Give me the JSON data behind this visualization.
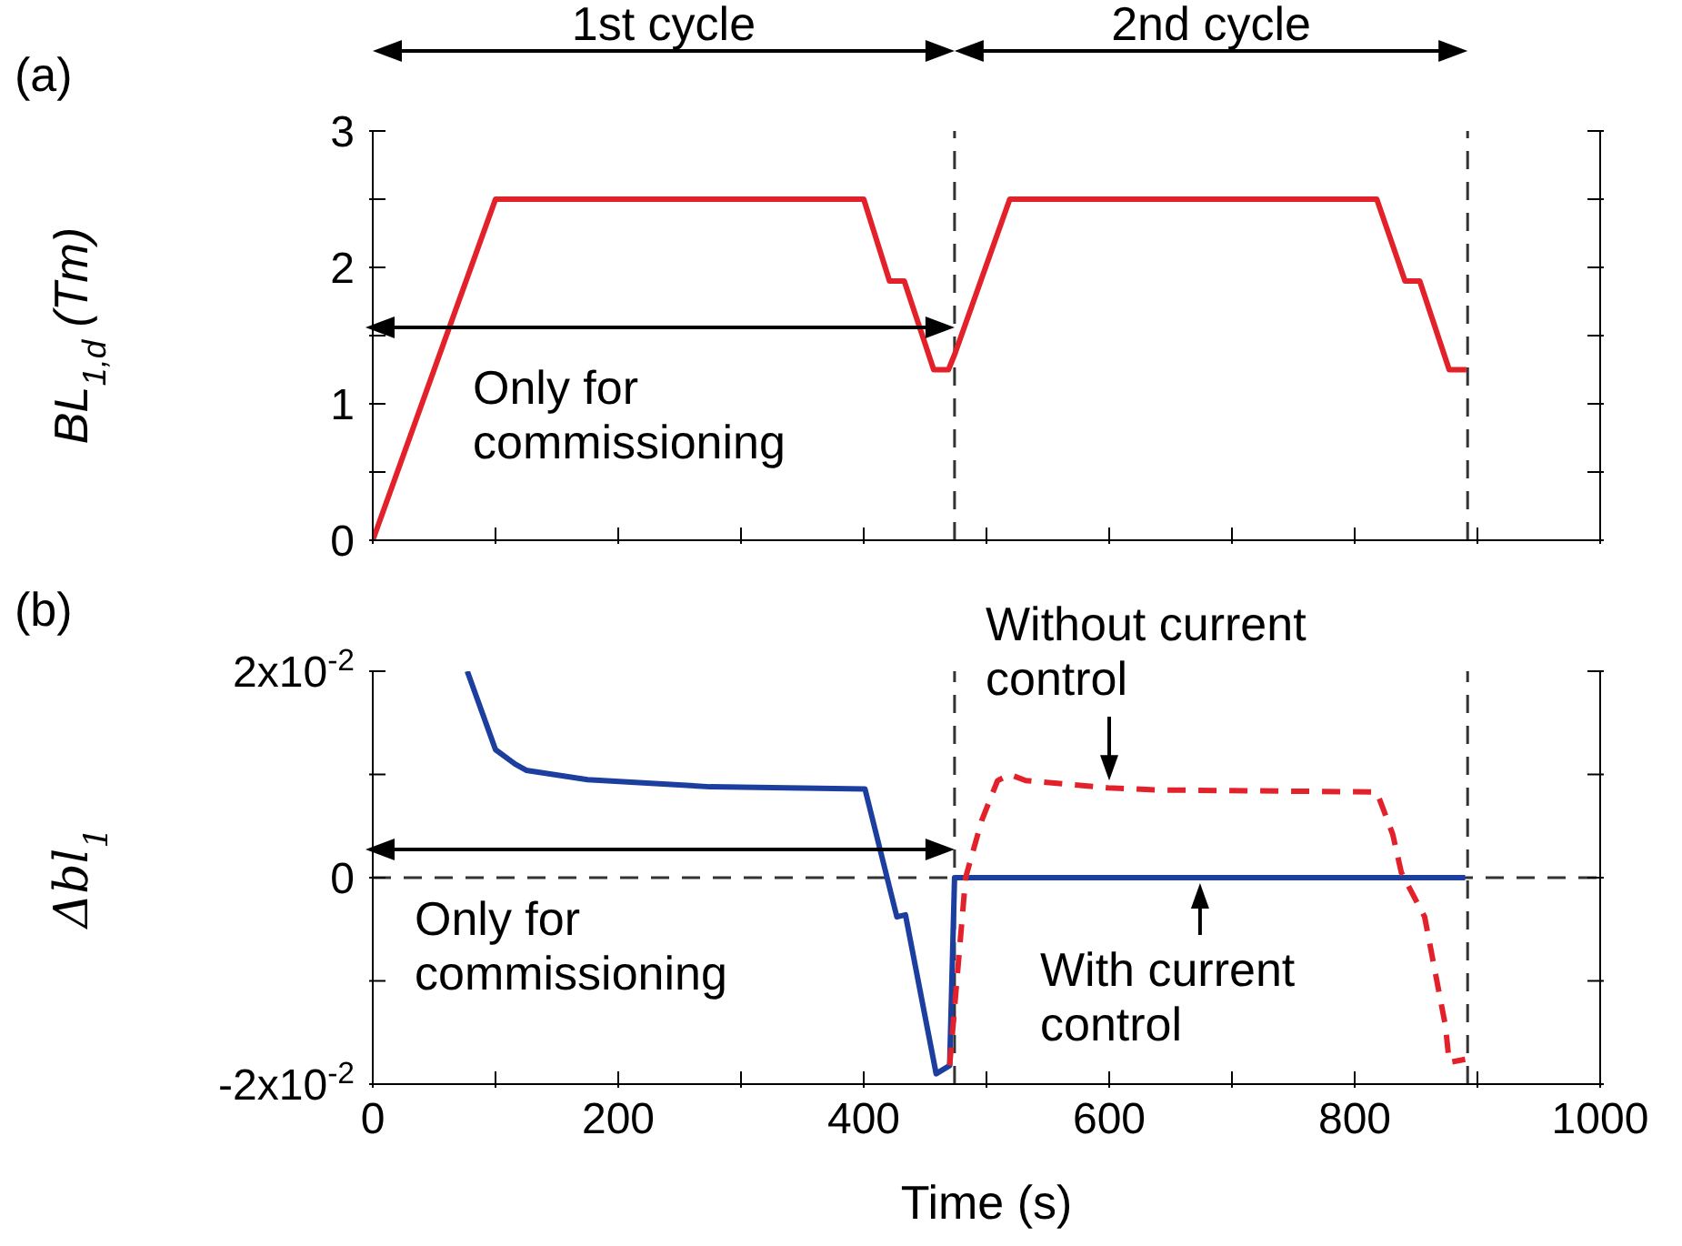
{
  "chart_data": [
    {
      "type": "line",
      "ylabel": "BL$_{1,d}$ (Tm)",
      "annotations": [
        "(a)",
        "1st cycle",
        "2nd cycle",
        "Only for commissioning"
      ],
      "series": [
        {
          "color": "#e3212b",
          "values": [
            0,
            2.5,
            2.5,
            1.9,
            1.9,
            1.25,
            1.25,
            1.36,
            2.5,
            2.5,
            1.9,
            1.9,
            1.25,
            1.25
          ],
          "x": [
            0,
            100,
            400,
            421,
            433,
            457,
            469,
            474,
            519,
            818,
            841,
            853,
            877,
            891
          ]
        }
      ],
      "xlim": [
        0,
        1000
      ],
      "xticks": [
        {
          "value": 0,
          "label": null
        },
        {
          "value": 100,
          "label": null
        },
        {
          "value": 200,
          "label": null
        },
        {
          "value": 300,
          "label": null
        },
        {
          "value": 400,
          "label": null
        },
        {
          "value": 500,
          "label": null
        },
        {
          "value": 600,
          "label": null
        },
        {
          "value": 700,
          "label": null
        },
        {
          "value": 800,
          "label": null
        },
        {
          "value": 900,
          "label": null
        },
        {
          "value": 1000,
          "label": null
        }
      ],
      "ylim": [
        0,
        3
      ],
      "yticks": [
        0,
        {
          "value": 0.5,
          "label": null
        },
        1,
        {
          "value": 1.5,
          "label": null
        },
        2,
        {
          "value": 2.5,
          "label": null
        },
        3
      ],
      "tick_labels": "y",
      "ref_lines": [
        {
          "axis": "x",
          "value": 474,
          "color": "#333333",
          "line_style": "dashed"
        },
        {
          "axis": "x",
          "value": 892,
          "color": "#333333",
          "line_style": "dashed"
        }
      ]
    },
    {
      "type": "line",
      "xlabel": "Time (s)",
      "ylabel": "Δbl$_{1}$",
      "annotations": [
        "(b)",
        "Only for commissioning"
      ],
      "series": [
        {
          "name": "With current control",
          "color": "#1c3f9f",
          "values": [
            0.02,
            0.0124,
            0.011,
            0.0104,
            0.0095,
            0.0088,
            0.0086,
            -0.0038,
            -0.0036,
            -0.019,
            -0.0182,
            0,
            0
          ],
          "x": [
            77,
            100,
            116,
            125,
            175,
            275,
            401,
            427,
            434,
            459,
            470,
            474,
            890
          ]
        },
        {
          "name": "Without current control",
          "color": "#e3212b",
          "line_style": "dashed",
          "values": [
            -0.0182,
            0,
            0.0055,
            0.0094,
            0.01,
            0.0094,
            0.0087,
            0.0085,
            0.0083,
            0.0042,
            0.0005,
            -0.0038,
            -0.0144,
            -0.0179,
            -0.0176
          ],
          "x": [
            470,
            483,
            496,
            509,
            519,
            532,
            599,
            639,
            818,
            831,
            838,
            857,
            874,
            877,
            890
          ]
        }
      ],
      "xlim": [
        0,
        1000
      ],
      "xticks": [
        0,
        {
          "value": 100,
          "label": null
        },
        200,
        {
          "value": 300,
          "label": null
        },
        400,
        {
          "value": 500,
          "label": null
        },
        600,
        {
          "value": 700,
          "label": null
        },
        800,
        {
          "value": 900,
          "label": null
        },
        1000
      ],
      "ylim": [
        -0.02,
        0.02
      ],
      "yticks": [
        {
          "value": -0.02,
          "label": "-2x10$^{-2}$"
        },
        {
          "value": -0.01,
          "label": null
        },
        0,
        {
          "value": 0.01,
          "label": null
        },
        {
          "value": 0.02,
          "label": "2x10$^{-2}$"
        }
      ],
      "ref_lines": [
        {
          "axis": "x",
          "value": 474,
          "color": "#333333",
          "line_style": "dashed"
        },
        {
          "axis": "x",
          "value": 892,
          "color": "#333333",
          "line_style": "dashed"
        },
        {
          "axis": "y",
          "value": 0,
          "color": "#333333",
          "line_style": "dashed"
        }
      ]
    }
  ]
}
